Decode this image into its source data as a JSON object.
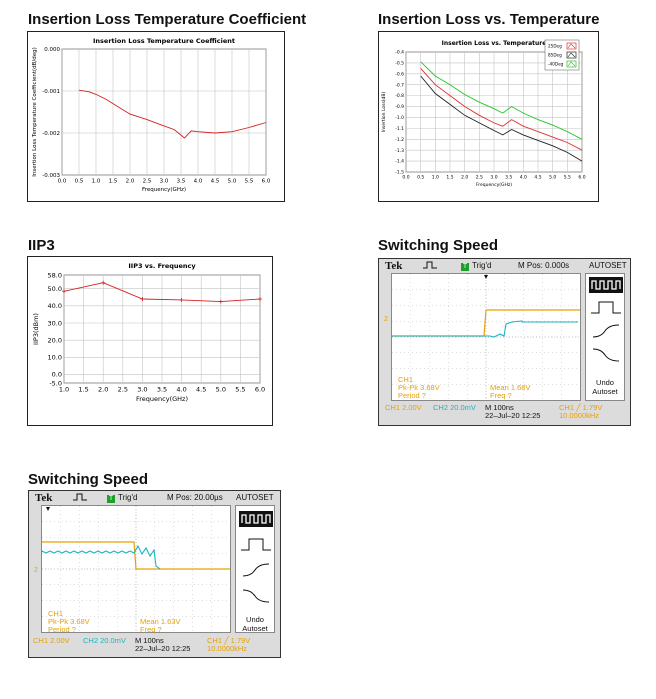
{
  "sections": {
    "s1": "Insertion Loss Temperature Coefficient",
    "s2": "Insertion Loss vs. Temperature",
    "s3": "IIP3",
    "s4": "Switching Speed",
    "s5": "Switching Speed"
  },
  "chart_data": [
    {
      "type": "line",
      "title": "Insertion Loss Temperature Coefficient",
      "xlabel": "Frequency(GHz)",
      "ylabel": "Insertion Loss Temperature Coefficient(dB/deg)",
      "xlim": [
        0,
        6
      ],
      "ylim": [
        -0.003,
        0
      ],
      "xticks": [
        "0.0",
        "0.5",
        "1.0",
        "1.5",
        "2.0",
        "2.5",
        "3.0",
        "3.5",
        "4.0",
        "4.5",
        "5.0",
        "5.5",
        "6.0"
      ],
      "yticks": [
        "0.000",
        "-0.001",
        "-0.002",
        "-0.003"
      ],
      "grid": true,
      "color": "#d62020",
      "x": [
        0.5,
        0.8,
        1.0,
        1.3,
        1.6,
        2.0,
        2.5,
        3.0,
        3.3,
        3.5,
        3.6,
        3.8,
        4.0,
        4.5,
        5.0,
        5.5,
        6.0
      ],
      "y": [
        -0.00098,
        -0.00102,
        -0.00108,
        -0.0012,
        -0.00135,
        -0.00155,
        -0.00168,
        -0.00183,
        -0.00192,
        -0.00205,
        -0.00212,
        -0.00195,
        -0.00197,
        -0.002,
        -0.00197,
        -0.00187,
        -0.00175
      ]
    },
    {
      "type": "line",
      "title": "Insertion Loss vs. Temperature",
      "xlabel": "Frequency(GHz)",
      "ylabel": "Insertion Loss(dB)",
      "xlim": [
        0,
        6
      ],
      "ylim": [
        -1.5,
        -0.4
      ],
      "xticks": [
        "0.0",
        "0.5",
        "1.0",
        "1.5",
        "2.0",
        "2.5",
        "3.0",
        "3.5",
        "4.0",
        "4.5",
        "5.0",
        "5.5",
        "6.0"
      ],
      "yticks": [
        "-0.4",
        "-0.5",
        "-0.6",
        "-0.7",
        "-0.8",
        "-0.9",
        "-1.0",
        "-1.1",
        "-1.2",
        "-1.3",
        "-1.4",
        "-1.5"
      ],
      "grid": true,
      "legend": "top-right",
      "series": [
        {
          "name": "25Deg",
          "color": "#e03030",
          "x": [
            0.5,
            1.0,
            1.5,
            2.0,
            2.5,
            3.0,
            3.3,
            3.6,
            4.0,
            4.5,
            5.0,
            5.5,
            6.0
          ],
          "y": [
            -0.55,
            -0.7,
            -0.8,
            -0.9,
            -0.98,
            -1.05,
            -1.08,
            -1.02,
            -1.08,
            -1.13,
            -1.18,
            -1.23,
            -1.3
          ]
        },
        {
          "name": "85Deg",
          "color": "#222222",
          "x": [
            0.5,
            1.0,
            1.5,
            2.0,
            2.5,
            3.0,
            3.3,
            3.6,
            4.0,
            4.5,
            5.0,
            5.5,
            6.0
          ],
          "y": [
            -0.62,
            -0.78,
            -0.88,
            -0.98,
            -1.05,
            -1.12,
            -1.16,
            -1.11,
            -1.16,
            -1.21,
            -1.26,
            -1.32,
            -1.4
          ]
        },
        {
          "name": "-40Deg",
          "color": "#22c622",
          "x": [
            0.5,
            1.0,
            1.5,
            2.0,
            2.5,
            3.0,
            3.3,
            3.6,
            4.0,
            4.5,
            5.0,
            5.5,
            6.0
          ],
          "y": [
            -0.49,
            -0.62,
            -0.7,
            -0.79,
            -0.86,
            -0.92,
            -0.96,
            -0.9,
            -0.96,
            -1.02,
            -1.07,
            -1.13,
            -1.2
          ]
        }
      ]
    },
    {
      "type": "line",
      "title": "IIP3 vs. Frequency",
      "xlabel": "Frequency(GHz)",
      "ylabel": "IIP3(dBm)",
      "xlim": [
        1,
        6
      ],
      "ylim": [
        -5,
        58
      ],
      "xticks": [
        "1.0",
        "1.5",
        "2.0",
        "2.5",
        "3.0",
        "3.5",
        "4.0",
        "4.5",
        "5.0",
        "5.5",
        "6.0"
      ],
      "yticks": [
        "58.0",
        "50.0",
        "40.0",
        "30.0",
        "20.0",
        "10.0",
        "0.0",
        "-5.0"
      ],
      "ytick_values": [
        58,
        50,
        40,
        30,
        20,
        10,
        0,
        -5
      ],
      "grid": true,
      "color": "#d62020",
      "x": [
        1.0,
        2.0,
        3.0,
        4.0,
        5.0,
        6.0
      ],
      "y": [
        48.5,
        53.5,
        44.0,
        43.5,
        42.5,
        44.0
      ]
    }
  ],
  "scope1": {
    "brand": "Tek",
    "trig": "Trig'd",
    "mpos": "M Pos: 0.000s",
    "autoset": "AUTOSET",
    "ch_marker": "2",
    "meas1": "CH1",
    "meas2": "Pk-Pk 3.68V",
    "meas3": "Period ?",
    "meas4": "Mean 1.68V",
    "meas5": "Freq ?",
    "ch1": "CH1  2.00V",
    "ch2": "CH2  20.0mV",
    "timebase": "M 100ns",
    "date": "22–Jul–20 12:25",
    "trigger": "CH1  ╱  1.79V",
    "freq": "10.0000kHz",
    "undo": "Undo",
    "undo2": "Autoset"
  },
  "scope2": {
    "brand": "Tek",
    "trig": "Trig'd",
    "mpos": "M Pos: 20.00µs",
    "autoset": "AUTOSET",
    "ch_marker": "2",
    "meas1": "CH1",
    "meas2": "Pk-Pk 3.68V",
    "meas3": "Period ?",
    "meas4": "Mean 1.63V",
    "meas5": "Freq ?",
    "ch1": "CH1  2.00V",
    "ch2": "CH2  20.0mV",
    "timebase": "M 100ns",
    "date": "22–Jul–20 12:25",
    "trigger": "CH1  ╱  1.79V",
    "freq": "10.0000kHz",
    "undo": "Undo",
    "undo2": "Autoset"
  }
}
